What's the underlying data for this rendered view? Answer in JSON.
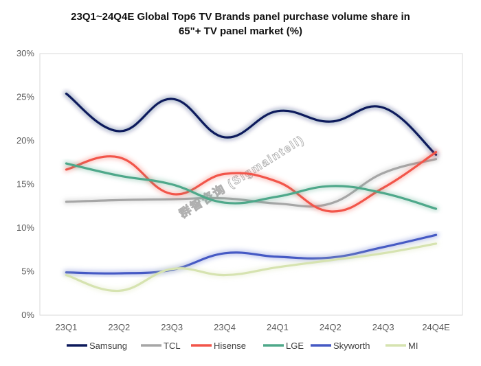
{
  "chart_data": {
    "type": "line",
    "title_line1": "23Q1~24Q4E Global Top6 TV Brands panel purchase volume share in",
    "title_line2": "65\"+ TV panel market (%)",
    "categories": [
      "23Q1",
      "23Q2",
      "23Q3",
      "23Q4",
      "24Q1",
      "24Q2",
      "24Q3",
      "24Q4E"
    ],
    "y_ticks": [
      "0%",
      "5%",
      "10%",
      "15%",
      "20%",
      "25%",
      "30%"
    ],
    "ylim": [
      0,
      30
    ],
    "grid": false,
    "legend_position": "bottom",
    "watermark": "群智咨询 (Sigmaintell)",
    "series": [
      {
        "name": "Samsung",
        "color": "#0d1a5c",
        "values": [
          25.4,
          21.1,
          24.8,
          20.4,
          23.4,
          22.2,
          23.8,
          18.4
        ]
      },
      {
        "name": "TCL",
        "color": "#a6a6a6",
        "values": [
          13.0,
          13.2,
          13.3,
          13.4,
          12.8,
          12.8,
          16.3,
          17.9
        ]
      },
      {
        "name": "Hisense",
        "color": "#f2554a",
        "values": [
          16.7,
          18.1,
          13.9,
          16.2,
          15.3,
          11.9,
          14.6,
          18.7
        ]
      },
      {
        "name": "LGE",
        "color": "#4ea88a",
        "values": [
          17.4,
          16.0,
          15.0,
          12.9,
          13.6,
          14.8,
          14.0,
          12.2
        ]
      },
      {
        "name": "Skyworth",
        "color": "#4559c4",
        "values": [
          4.9,
          4.8,
          5.2,
          7.1,
          6.7,
          6.6,
          7.8,
          9.2
        ]
      },
      {
        "name": "MI",
        "color": "#d6e3b0",
        "values": [
          4.6,
          2.8,
          5.3,
          4.6,
          5.5,
          6.3,
          7.1,
          8.2
        ]
      }
    ]
  }
}
